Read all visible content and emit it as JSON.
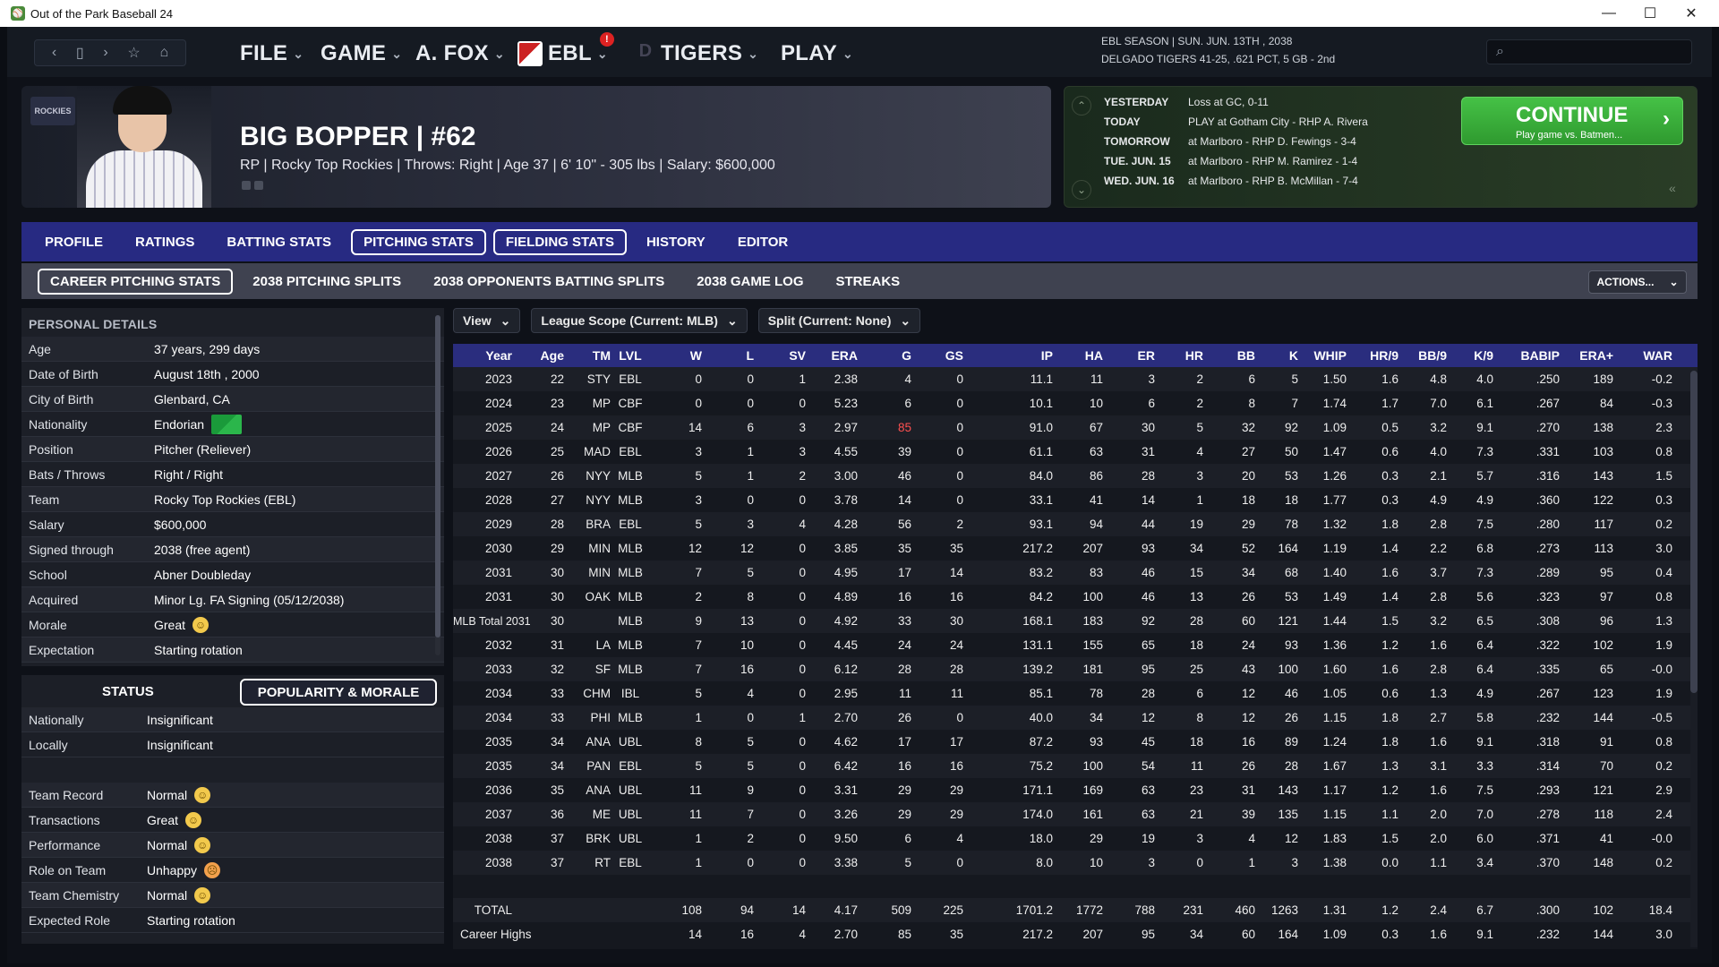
{
  "app": {
    "title": "Out of the Park Baseball 24"
  },
  "nav": {
    "menus": [
      {
        "label": "FILE"
      },
      {
        "label": "GAME"
      },
      {
        "label": "A. FOX"
      },
      {
        "label": "EBL"
      },
      {
        "label": "TIGERS"
      },
      {
        "label": "PLAY"
      }
    ],
    "notification": "!"
  },
  "season": {
    "line1": "EBL SEASON  |  SUN. JUN. 13TH , 2038",
    "line2": "DELGADO TIGERS  41-25, .621 PCT, 5 GB - 2nd"
  },
  "player": {
    "name": "BIG BOPPER | #62",
    "info": "RP | Rocky Top Rockies  |  Throws: Right  |  Age 37  |  6' 10\" - 305 lbs  |  Salary: $600,000",
    "team_logo": "ROCKIES"
  },
  "schedule": [
    {
      "day": "YESTERDAY",
      "game": "Loss at GC, 0-11"
    },
    {
      "day": "TODAY",
      "game": "PLAY at Gotham City - RHP A. Rivera"
    },
    {
      "day": "TOMORROW",
      "game": "at Marlboro - RHP D. Fewings - 3-4"
    },
    {
      "day": "TUE. JUN. 15",
      "game": "at Marlboro - RHP M. Ramirez - 1-4"
    },
    {
      "day": "WED. JUN. 16",
      "game": "at Marlboro - RHP B. McMillan - 7-4"
    }
  ],
  "continue": {
    "label": "CONTINUE",
    "sub": "Play game vs. Batmen..."
  },
  "tabs1": [
    "PROFILE",
    "RATINGS",
    "BATTING STATS",
    "PITCHING STATS",
    "FIELDING STATS",
    "HISTORY",
    "EDITOR"
  ],
  "tabs2": [
    "CAREER PITCHING STATS",
    "2038 PITCHING SPLITS",
    "2038 OPPONENTS BATTING SPLITS",
    "2038 GAME LOG",
    "STREAKS"
  ],
  "actions_label": "ACTIONS...",
  "personal": {
    "title": "PERSONAL DETAILS",
    "rows": [
      {
        "k": "Age",
        "v": "37 years, 299 days"
      },
      {
        "k": "Date of Birth",
        "v": "August 18th , 2000"
      },
      {
        "k": "City of Birth",
        "v": "Glenbard, CA"
      },
      {
        "k": "Nationality",
        "v": "Endorian"
      },
      {
        "k": "Position",
        "v": "Pitcher (Reliever)"
      },
      {
        "k": "Bats / Throws",
        "v": "Right / Right"
      },
      {
        "k": "Team",
        "v": "Rocky Top Rockies (EBL)"
      },
      {
        "k": "Salary",
        "v": "$600,000"
      },
      {
        "k": "Signed through",
        "v": "2038 (free agent)"
      },
      {
        "k": "School",
        "v": "Abner Doubleday"
      },
      {
        "k": "Acquired",
        "v": "Minor Lg. FA Signing (05/12/2038)"
      },
      {
        "k": "Morale",
        "v": "Great"
      },
      {
        "k": "Expectation",
        "v": "Starting rotation"
      }
    ]
  },
  "status": {
    "title": "STATUS",
    "popularity_btn": "POPULARITY & MORALE",
    "rows": [
      {
        "k": "Nationally",
        "v": "Insignificant"
      },
      {
        "k": "Locally",
        "v": "Insignificant"
      },
      {
        "k": "Team Record",
        "v": "Normal"
      },
      {
        "k": "Transactions",
        "v": "Great"
      },
      {
        "k": "Performance",
        "v": "Normal"
      },
      {
        "k": "Role on Team",
        "v": "Unhappy"
      },
      {
        "k": "Team Chemistry",
        "v": "Normal"
      },
      {
        "k": "Expected Role",
        "v": "Starting rotation"
      }
    ]
  },
  "filters": [
    "View",
    "League Scope (Current: MLB)",
    "Split (Current: None)"
  ],
  "table": {
    "headers": [
      "Year",
      "Age",
      "TM",
      "LVL",
      "W",
      "L",
      "SV",
      "ERA",
      "G",
      "GS",
      "IP",
      "HA",
      "ER",
      "HR",
      "BB",
      "K",
      "WHIP",
      "HR/9",
      "BB/9",
      "K/9",
      "BABIP",
      "ERA+",
      "WAR"
    ],
    "rows": [
      [
        "2023",
        "22",
        "STY",
        "EBL",
        "0",
        "0",
        "1",
        "2.38",
        "4",
        "0",
        "11.1",
        "11",
        "3",
        "2",
        "6",
        "5",
        "1.50",
        "1.6",
        "4.8",
        "4.0",
        ".250",
        "189",
        "-0.2"
      ],
      [
        "2024",
        "23",
        "MP",
        "CBF",
        "0",
        "0",
        "0",
        "5.23",
        "6",
        "0",
        "10.1",
        "10",
        "6",
        "2",
        "8",
        "7",
        "1.74",
        "1.7",
        "7.0",
        "6.1",
        ".267",
        "84",
        "-0.3"
      ],
      [
        "2025",
        "24",
        "MP",
        "CBF",
        "14",
        "6",
        "3",
        "2.97",
        "85",
        "0",
        "91.0",
        "67",
        "30",
        "5",
        "32",
        "92",
        "1.09",
        "0.5",
        "3.2",
        "9.1",
        ".270",
        "138",
        "2.3"
      ],
      [
        "2026",
        "25",
        "MAD",
        "EBL",
        "3",
        "1",
        "3",
        "4.55",
        "39",
        "0",
        "61.1",
        "63",
        "31",
        "4",
        "27",
        "50",
        "1.47",
        "0.6",
        "4.0",
        "7.3",
        ".331",
        "103",
        "0.8"
      ],
      [
        "2027",
        "26",
        "NYY",
        "MLB",
        "5",
        "1",
        "2",
        "3.00",
        "46",
        "0",
        "84.0",
        "86",
        "28",
        "3",
        "20",
        "53",
        "1.26",
        "0.3",
        "2.1",
        "5.7",
        ".316",
        "143",
        "1.5"
      ],
      [
        "2028",
        "27",
        "NYY",
        "MLB",
        "3",
        "0",
        "0",
        "3.78",
        "14",
        "0",
        "33.1",
        "41",
        "14",
        "1",
        "18",
        "18",
        "1.77",
        "0.3",
        "4.9",
        "4.9",
        ".360",
        "122",
        "0.3"
      ],
      [
        "2029",
        "28",
        "BRA",
        "EBL",
        "5",
        "3",
        "4",
        "4.28",
        "56",
        "2",
        "93.1",
        "94",
        "44",
        "19",
        "29",
        "78",
        "1.32",
        "1.8",
        "2.8",
        "7.5",
        ".280",
        "117",
        "0.2"
      ],
      [
        "2030",
        "29",
        "MIN",
        "MLB",
        "12",
        "12",
        "0",
        "3.85",
        "35",
        "35",
        "217.2",
        "207",
        "93",
        "34",
        "52",
        "164",
        "1.19",
        "1.4",
        "2.2",
        "6.8",
        ".273",
        "113",
        "3.0"
      ],
      [
        "2031",
        "30",
        "MIN",
        "MLB",
        "7",
        "5",
        "0",
        "4.95",
        "17",
        "14",
        "83.2",
        "83",
        "46",
        "15",
        "34",
        "68",
        "1.40",
        "1.6",
        "3.7",
        "7.3",
        ".289",
        "95",
        "0.4"
      ],
      [
        "2031",
        "30",
        "OAK",
        "MLB",
        "2",
        "8",
        "0",
        "4.89",
        "16",
        "16",
        "84.2",
        "100",
        "46",
        "13",
        "26",
        "53",
        "1.49",
        "1.4",
        "2.8",
        "5.6",
        ".323",
        "97",
        "0.8"
      ],
      [
        "MLB Total 2031",
        "30",
        "",
        "MLB",
        "9",
        "13",
        "0",
        "4.92",
        "33",
        "30",
        "168.1",
        "183",
        "92",
        "28",
        "60",
        "121",
        "1.44",
        "1.5",
        "3.2",
        "6.5",
        ".308",
        "96",
        "1.3"
      ],
      [
        "2032",
        "31",
        "LA",
        "MLB",
        "7",
        "10",
        "0",
        "4.45",
        "24",
        "24",
        "131.1",
        "155",
        "65",
        "18",
        "24",
        "93",
        "1.36",
        "1.2",
        "1.6",
        "6.4",
        ".322",
        "102",
        "1.9"
      ],
      [
        "2033",
        "32",
        "SF",
        "MLB",
        "7",
        "16",
        "0",
        "6.12",
        "28",
        "28",
        "139.2",
        "181",
        "95",
        "25",
        "43",
        "100",
        "1.60",
        "1.6",
        "2.8",
        "6.4",
        ".335",
        "65",
        "-0.0"
      ],
      [
        "2034",
        "33",
        "CHM",
        "IBL",
        "5",
        "4",
        "0",
        "2.95",
        "11",
        "11",
        "85.1",
        "78",
        "28",
        "6",
        "12",
        "46",
        "1.05",
        "0.6",
        "1.3",
        "4.9",
        ".267",
        "123",
        "1.9"
      ],
      [
        "2034",
        "33",
        "PHI",
        "MLB",
        "1",
        "0",
        "1",
        "2.70",
        "26",
        "0",
        "40.0",
        "34",
        "12",
        "8",
        "12",
        "26",
        "1.15",
        "1.8",
        "2.7",
        "5.8",
        ".232",
        "144",
        "-0.5"
      ],
      [
        "2035",
        "34",
        "ANA",
        "UBL",
        "8",
        "5",
        "0",
        "4.62",
        "17",
        "17",
        "87.2",
        "93",
        "45",
        "18",
        "16",
        "89",
        "1.24",
        "1.8",
        "1.6",
        "9.1",
        ".318",
        "91",
        "0.8"
      ],
      [
        "2035",
        "34",
        "PAN",
        "EBL",
        "5",
        "5",
        "0",
        "6.42",
        "16",
        "16",
        "75.2",
        "100",
        "54",
        "11",
        "26",
        "28",
        "1.67",
        "1.3",
        "3.1",
        "3.3",
        ".314",
        "70",
        "0.2"
      ],
      [
        "2036",
        "35",
        "ANA",
        "UBL",
        "11",
        "9",
        "0",
        "3.31",
        "29",
        "29",
        "171.1",
        "169",
        "63",
        "23",
        "31",
        "143",
        "1.17",
        "1.2",
        "1.6",
        "7.5",
        ".293",
        "121",
        "2.9"
      ],
      [
        "2037",
        "36",
        "ME",
        "UBL",
        "11",
        "7",
        "0",
        "3.26",
        "29",
        "29",
        "174.0",
        "161",
        "63",
        "21",
        "39",
        "135",
        "1.15",
        "1.1",
        "2.0",
        "7.0",
        ".278",
        "118",
        "2.4"
      ],
      [
        "2038",
        "37",
        "BRK",
        "UBL",
        "1",
        "2",
        "0",
        "9.50",
        "6",
        "4",
        "18.0",
        "29",
        "19",
        "3",
        "4",
        "12",
        "1.83",
        "1.5",
        "2.0",
        "6.0",
        ".371",
        "41",
        "-0.0"
      ],
      [
        "2038",
        "37",
        "RT",
        "EBL",
        "1",
        "0",
        "0",
        "3.38",
        "5",
        "0",
        "8.0",
        "10",
        "3",
        "0",
        "1",
        "3",
        "1.38",
        "0.0",
        "1.1",
        "3.4",
        ".370",
        "148",
        "0.2"
      ]
    ],
    "total": [
      "TOTAL",
      "",
      "",
      "",
      "108",
      "94",
      "14",
      "4.17",
      "509",
      "225",
      "1701.2",
      "1772",
      "788",
      "231",
      "460",
      "1263",
      "1.31",
      "1.2",
      "2.4",
      "6.7",
      ".300",
      "102",
      "18.4"
    ],
    "highs": [
      "Career Highs",
      "",
      "",
      "",
      "14",
      "16",
      "4",
      "2.70",
      "85",
      "35",
      "217.2",
      "207",
      "95",
      "34",
      "60",
      "164",
      "1.09",
      "0.3",
      "1.6",
      "9.1",
      ".232",
      "144",
      "3.0"
    ]
  },
  "colors": {
    "highlight_red": "#ff5050",
    "continue_green": "#3bb23b",
    "tab_blue": "#272a82"
  }
}
